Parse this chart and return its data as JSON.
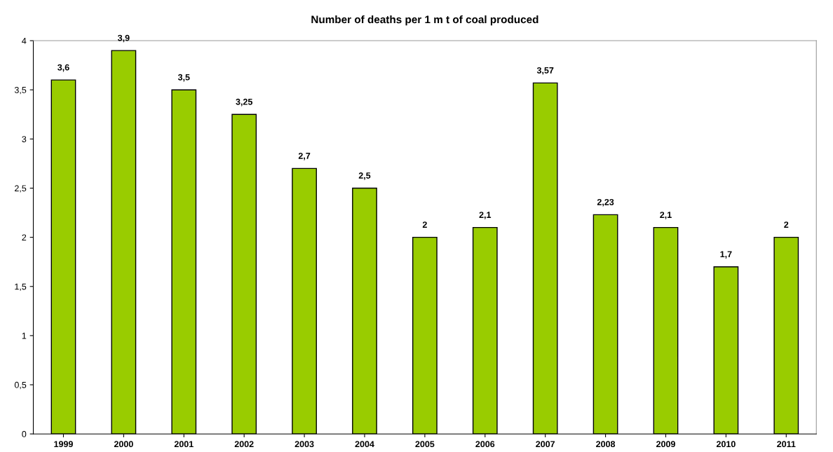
{
  "chart_data": {
    "type": "bar",
    "title": "Number of deaths per 1 m t of coal produced",
    "categories": [
      "1999",
      "2000",
      "2001",
      "2002",
      "2003",
      "2004",
      "2005",
      "2006",
      "2007",
      "2008",
      "2009",
      "2010",
      "2011"
    ],
    "values": [
      3.6,
      3.9,
      3.5,
      3.25,
      2.7,
      2.5,
      2,
      2.1,
      3.57,
      2.23,
      2.1,
      1.7,
      2
    ],
    "value_labels": [
      "3,6",
      "3,9",
      "3,5",
      "3,25",
      "2,7",
      "2,5",
      "2",
      "2,1",
      "3,57",
      "2,23",
      "2,1",
      "1,7",
      "2"
    ],
    "color": "#99cc00",
    "ylim": [
      0,
      4
    ],
    "yticks": [
      0,
      {
        "value": 0.5,
        "label": "0,5"
      },
      1,
      {
        "value": 1.5,
        "label": "1,5"
      },
      2,
      {
        "value": 2.5,
        "label": "2,5"
      },
      3,
      {
        "value": 3.5,
        "label": "3,5"
      },
      4
    ],
    "grid": false,
    "legend": false
  }
}
